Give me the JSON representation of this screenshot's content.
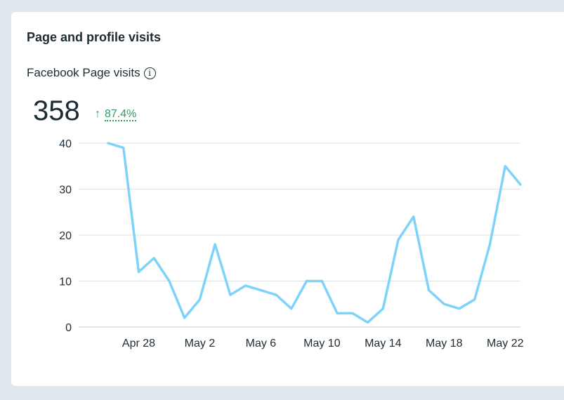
{
  "card": {
    "title": "Page and profile visits",
    "metric_label": "Facebook Page visits",
    "info_icon": "info-icon",
    "total": "358",
    "change_icon": "arrow-up-icon",
    "change": "87.4%",
    "change_color": "#2e9e5e"
  },
  "chart_data": {
    "type": "line",
    "title": "Facebook Page visits",
    "series": [
      {
        "name": "Facebook Page visits",
        "color": "#7fd3fb",
        "values": [
          40,
          39,
          12,
          15,
          10,
          2,
          6,
          18,
          7,
          9,
          8,
          7,
          4,
          10,
          10,
          3,
          3,
          1,
          4,
          19,
          24,
          8,
          5,
          4,
          6,
          18,
          35,
          31
        ]
      }
    ],
    "x": [
      "Apr 26",
      "Apr 27",
      "Apr 28",
      "Apr 29",
      "Apr 30",
      "May 1",
      "May 2",
      "May 3",
      "May 4",
      "May 5",
      "May 6",
      "May 7",
      "May 8",
      "May 9",
      "May 10",
      "May 11",
      "May 12",
      "May 13",
      "May 14",
      "May 15",
      "May 16",
      "May 17",
      "May 18",
      "May 19",
      "May 20",
      "May 21",
      "May 22",
      "May 23"
    ],
    "x_tick_labels": [
      "Apr 28",
      "May 2",
      "May 6",
      "May 10",
      "May 14",
      "May 18",
      "May 22"
    ],
    "y_ticks": [
      0,
      10,
      20,
      30,
      40
    ],
    "ylim": [
      0,
      40
    ],
    "grid": true
  }
}
